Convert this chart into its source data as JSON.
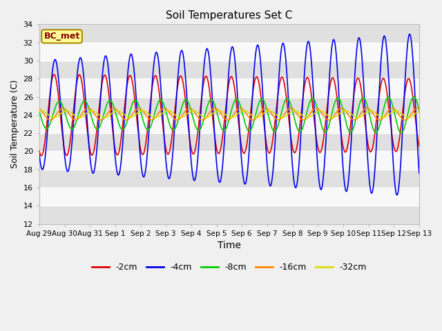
{
  "title": "Soil Temperatures Set C",
  "xlabel": "Time",
  "ylabel": "Soil Temperature (C)",
  "ylim": [
    12,
    34
  ],
  "yticks": [
    12,
    14,
    16,
    18,
    20,
    22,
    24,
    26,
    28,
    30,
    32,
    34
  ],
  "tick_labels": [
    "Aug 29",
    "Aug 30",
    "Aug 31",
    "Sep 1",
    "Sep 2",
    "Sep 3",
    "Sep 4",
    "Sep 5",
    "Sep 6",
    "Sep 7",
    "Sep 8",
    "Sep 9",
    "Sep 10",
    "Sep 11",
    "Sep 12",
    "Sep 13"
  ],
  "series_labels": [
    "-2cm",
    "-4cm",
    "-8cm",
    "-16cm",
    "-32cm"
  ],
  "series_colors": [
    "#dd0000",
    "#0000ee",
    "#00cc00",
    "#ff8800",
    "#dddd00"
  ],
  "annotation": "BC_met",
  "fig_bg": "#f0f0f0",
  "plot_bg": "#f8f8f8",
  "band_color": "#e0e0e0",
  "grid_color": "#d0d0d0",
  "n_days": 15
}
